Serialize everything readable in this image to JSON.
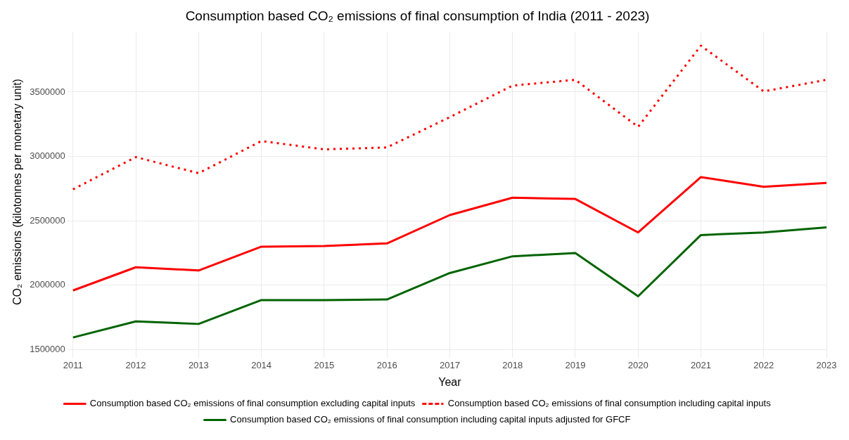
{
  "chart_data": {
    "type": "line",
    "title": "Consumption based CO₂ emissions of final consumption of India (2011 - 2023)",
    "xlabel": "Year",
    "ylabel": "CO₂ emissions (kilotonnes per monetary unit)",
    "categories": [
      "2011",
      "2012",
      "2013",
      "2014",
      "2015",
      "2016",
      "2017",
      "2018",
      "2019",
      "2020",
      "2021",
      "2022",
      "2023"
    ],
    "series": [
      {
        "name": "Consumption based CO₂ emissions of final consumption excluding capital inputs",
        "color": "#ff0000",
        "line_style": "solid",
        "values": [
          1960000,
          2140000,
          2115000,
          2300000,
          2305000,
          2325000,
          2545000,
          2680000,
          2670000,
          2410000,
          2840000,
          2765000,
          2795000
        ]
      },
      {
        "name": "Consumption based CO₂ emissions of final consumption including capital inputs",
        "color": "#ff0000",
        "line_style": "dotted",
        "values": [
          2745000,
          2995000,
          2870000,
          3120000,
          3055000,
          3070000,
          3305000,
          3550000,
          3595000,
          3230000,
          3860000,
          3505000,
          3595000
        ]
      },
      {
        "name": "Consumption based CO₂ emissions of final consumption including capital inputs adjusted for GFCF",
        "color": "#006400",
        "line_style": "solid",
        "values": [
          1595000,
          1720000,
          1700000,
          1885000,
          1885000,
          1890000,
          2095000,
          2225000,
          2250000,
          1915000,
          2390000,
          2410000,
          2450000
        ]
      }
    ],
    "ylim": [
      1480000,
      3970000
    ],
    "yticks": [
      1500000,
      2000000,
      2500000,
      3000000,
      3500000
    ],
    "grid": true,
    "legend": "bottom",
    "marker": "none"
  }
}
